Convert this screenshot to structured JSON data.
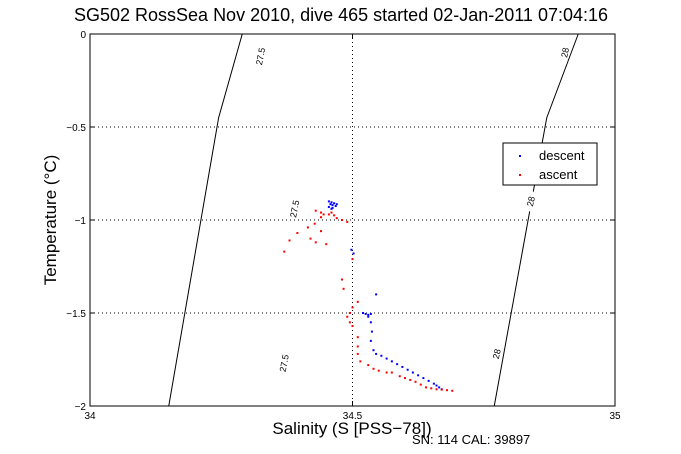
{
  "chart_data": {
    "type": "scatter",
    "title": "SG502 RossSea Nov 2010, dive 465 started 02-Jan-2011 07:04:16",
    "xlabel": "Salinity (S [PSS−78])",
    "ylabel": "Temperature (°C)",
    "xlim": [
      34,
      35
    ],
    "ylim": [
      -2,
      0
    ],
    "x_ticks": [
      34,
      34.5,
      35
    ],
    "x_tick_labels": [
      "34",
      "34.5",
      "35"
    ],
    "y_ticks": [
      0,
      -0.5,
      -1,
      -1.5,
      -2
    ],
    "y_tick_labels": [
      "0",
      "−0.5",
      "−1",
      "−1.5",
      "−2"
    ],
    "grid": true,
    "legend_position": "right",
    "footer": "SN: 114  CAL: 39897",
    "isopycnals": [
      {
        "label": "27.5",
        "points": [
          [
            34.15,
            -2
          ],
          [
            34.245,
            -0.45
          ],
          [
            34.29,
            0
          ]
        ]
      },
      {
        "label": "28",
        "points": [
          [
            34.77,
            -2
          ],
          [
            34.87,
            -0.45
          ],
          [
            34.93,
            0
          ]
        ]
      }
    ],
    "isopycnal_label_positions": [
      {
        "label": "27.5",
        "at": [
          [
            34.325,
            -0.12
          ],
          [
            34.39,
            -0.94
          ],
          [
            34.37,
            -1.77
          ]
        ]
      },
      {
        "label": "28",
        "at": [
          [
            34.905,
            -0.1
          ],
          [
            34.84,
            -0.9
          ],
          [
            34.775,
            -1.72
          ]
        ]
      }
    ],
    "series": [
      {
        "name": "descent",
        "color": "#0000ff",
        "points": [
          [
            34.455,
            -0.9
          ],
          [
            34.46,
            -0.905
          ],
          [
            34.465,
            -0.91
          ],
          [
            34.458,
            -0.915
          ],
          [
            34.462,
            -0.92
          ],
          [
            34.468,
            -0.925
          ],
          [
            34.455,
            -0.93
          ],
          [
            34.462,
            -0.935
          ],
          [
            34.47,
            -0.915
          ],
          [
            34.46,
            -0.94
          ],
          [
            34.498,
            -1.16
          ],
          [
            34.502,
            -1.18
          ],
          [
            34.545,
            -1.4
          ],
          [
            34.52,
            -1.5
          ],
          [
            34.525,
            -1.505
          ],
          [
            34.53,
            -1.51
          ],
          [
            34.535,
            -1.505
          ],
          [
            34.53,
            -1.52
          ],
          [
            34.535,
            -1.55
          ],
          [
            34.537,
            -1.6
          ],
          [
            34.535,
            -1.65
          ],
          [
            34.54,
            -1.7
          ],
          [
            34.545,
            -1.72
          ],
          [
            34.555,
            -1.73
          ],
          [
            34.565,
            -1.745
          ],
          [
            34.575,
            -1.76
          ],
          [
            34.585,
            -1.775
          ],
          [
            34.595,
            -1.79
          ],
          [
            34.605,
            -1.805
          ],
          [
            34.615,
            -1.82
          ],
          [
            34.625,
            -1.835
          ],
          [
            34.635,
            -1.85
          ],
          [
            34.645,
            -1.865
          ],
          [
            34.655,
            -1.88
          ],
          [
            34.66,
            -1.89
          ],
          [
            34.665,
            -1.9
          ],
          [
            34.67,
            -1.91
          ]
        ]
      },
      {
        "name": "ascent",
        "color": "#ff0000",
        "points": [
          [
            34.43,
            -0.95
          ],
          [
            34.44,
            -0.96
          ],
          [
            34.445,
            -0.97
          ],
          [
            34.44,
            -0.985
          ],
          [
            34.455,
            -0.97
          ],
          [
            34.46,
            -0.96
          ],
          [
            34.465,
            -0.975
          ],
          [
            34.47,
            -0.99
          ],
          [
            34.48,
            -1.0
          ],
          [
            34.49,
            -1.01
          ],
          [
            34.428,
            -1.02
          ],
          [
            34.415,
            -1.04
          ],
          [
            34.44,
            -1.06
          ],
          [
            34.395,
            -1.07
          ],
          [
            34.38,
            -1.11
          ],
          [
            34.42,
            -1.1
          ],
          [
            34.43,
            -1.12
          ],
          [
            34.45,
            -1.13
          ],
          [
            34.37,
            -1.17
          ],
          [
            34.5,
            -1.21
          ],
          [
            34.48,
            -1.32
          ],
          [
            34.483,
            -1.37
          ],
          [
            34.51,
            -1.44
          ],
          [
            34.5,
            -1.47
          ],
          [
            34.495,
            -1.5
          ],
          [
            34.49,
            -1.52
          ],
          [
            34.495,
            -1.55
          ],
          [
            34.5,
            -1.57
          ],
          [
            34.51,
            -1.63
          ],
          [
            34.51,
            -1.68
          ],
          [
            34.51,
            -1.72
          ],
          [
            34.515,
            -1.76
          ],
          [
            34.53,
            -1.78
          ],
          [
            34.54,
            -1.8
          ],
          [
            34.55,
            -1.81
          ],
          [
            34.565,
            -1.82
          ],
          [
            34.575,
            -1.82
          ],
          [
            34.59,
            -1.84
          ],
          [
            34.6,
            -1.85
          ],
          [
            34.61,
            -1.86
          ],
          [
            34.62,
            -1.87
          ],
          [
            34.63,
            -1.885
          ],
          [
            34.64,
            -1.9
          ],
          [
            34.65,
            -1.905
          ],
          [
            34.66,
            -1.91
          ],
          [
            34.67,
            -1.912
          ],
          [
            34.68,
            -1.915
          ],
          [
            34.69,
            -1.918
          ]
        ]
      }
    ]
  }
}
